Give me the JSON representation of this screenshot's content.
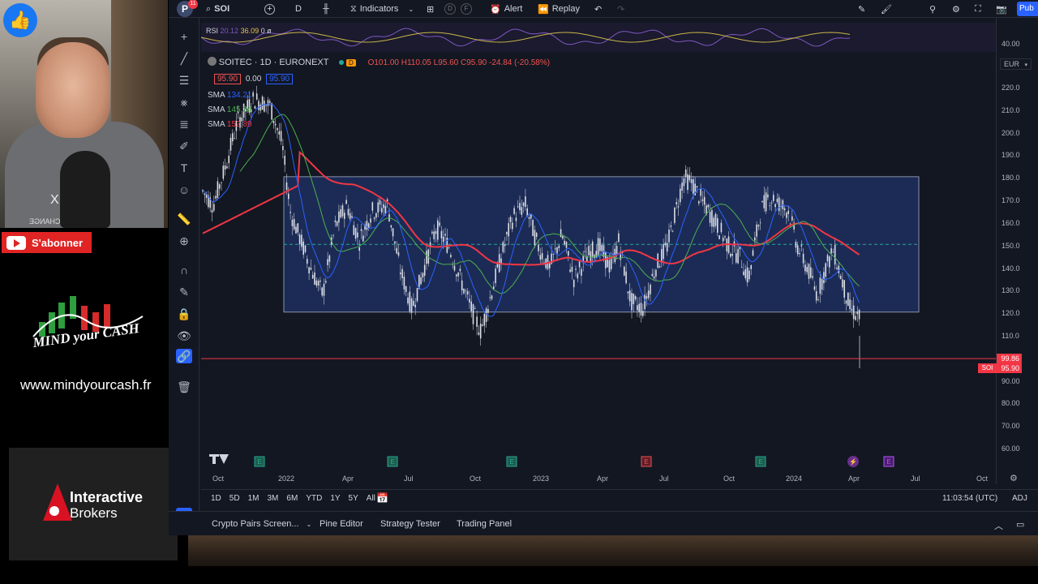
{
  "overlay": {
    "subscribe_label": "S'abonner",
    "brand_name": "MIND your CASH",
    "website": "www.mindyourcash.fr",
    "broker_line1": "Interactive",
    "broker_line2": "Brokers",
    "webcam_bg_text": "CHANGE",
    "webcam_bg_letter": "X"
  },
  "topbar": {
    "avatar_letter": "P",
    "notification_count": "11",
    "symbol": "SOI",
    "interval": "D",
    "indicators_label": "Indicators",
    "circle_d": "D",
    "circle_f": "F",
    "alert_label": "Alert",
    "replay_label": "Replay",
    "publish_label": "Pub"
  },
  "rsi": {
    "label": "RSI",
    "v1": "20.12",
    "v2": "36.09",
    "v3": "0",
    "v4": "ø"
  },
  "scale_rsi": {
    "value": "40.00"
  },
  "legend": {
    "title": "SOITEC · 1D · EURONEXT",
    "badge": "D",
    "open": "O101.00",
    "high": "H110.05",
    "low": "L95.60",
    "close": "C95.90",
    "change": "-24.84 (-20.58%)",
    "bid": "95.90",
    "spread": "0.00",
    "ask": "95.90",
    "sma1_label": "SMA",
    "sma1_value": "134.21",
    "sma2_label": "SMA",
    "sma2_value": "145.34",
    "sma3_label": "SMA",
    "sma3_value": "152.89"
  },
  "price_scale": {
    "currency": "EUR",
    "ticks": [
      "220.0",
      "210.0",
      "200.0",
      "190.0",
      "180.0",
      "170.0",
      "160.0",
      "150.0",
      "140.0",
      "130.0",
      "120.0",
      "110.0",
      "100.0",
      "90.00",
      "80.00",
      "70.00",
      "60.00"
    ],
    "alert_price": "99.86",
    "last_symbol": "SOI",
    "last_price": "95.90"
  },
  "chart_data": {
    "type": "candlestick",
    "symbol": "SOITEC",
    "interval": "1D",
    "exchange": "EURONEXT",
    "x_labels": [
      "Oct",
      "2022",
      "Apr",
      "Jul",
      "Oct",
      "2023",
      "Apr",
      "Jul",
      "Oct",
      "2024",
      "Apr",
      "Jul",
      "Oct"
    ],
    "ylim": [
      55,
      225
    ],
    "range_box": {
      "upper": 180.5,
      "lower": 120.5
    },
    "dashed_line": 150.5,
    "alert_line": 99.86,
    "last_close": 95.9,
    "sma_values": [
      134.21,
      145.34,
      152.89
    ],
    "colors": {
      "up": "#26a69a",
      "down": "#ef5350",
      "sma_fast": "#2962ff",
      "sma_mid": "#4caf50",
      "sma_slow": "#f23645",
      "box": "#1e2f5e",
      "alert": "#f23645"
    }
  },
  "ranges": [
    "1D",
    "5D",
    "1M",
    "3M",
    "6M",
    "YTD",
    "1Y",
    "5Y",
    "All"
  ],
  "clock": "11:03:54 (UTC)",
  "adj": "ADJ",
  "bottom_tabs": {
    "screener": "Crypto Pairs Screen...",
    "pine": "Pine Editor",
    "strategy": "Strategy Tester",
    "trading": "Trading Panel"
  }
}
